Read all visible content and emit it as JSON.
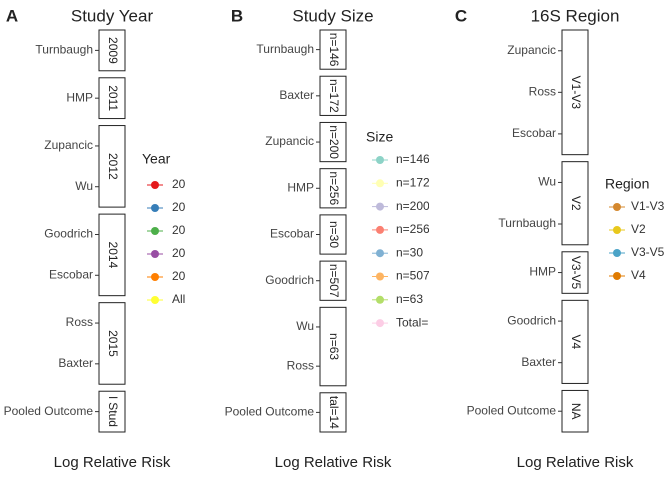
{
  "chart_data": [
    {
      "type": "forest",
      "panel": "A",
      "title": "Study Year",
      "x_label": "Log Relative Risk",
      "facets": [
        {
          "label": "2009",
          "rows": [
            "Turnbaugh"
          ]
        },
        {
          "label": "2011",
          "rows": [
            "HMP"
          ]
        },
        {
          "label": "2012",
          "rows": [
            "Zupancic",
            "Wu"
          ]
        },
        {
          "label": "2014",
          "rows": [
            "Goodrich",
            "Escobar"
          ]
        },
        {
          "label": "2015",
          "rows": [
            "Ross",
            "Baxter"
          ]
        },
        {
          "label": "l Stud",
          "rows": [
            "Pooled Outcome"
          ]
        }
      ],
      "legend": {
        "title": "Year",
        "entries": [
          {
            "label": "20",
            "color": "#e41a1c"
          },
          {
            "label": "20",
            "color": "#377eb8"
          },
          {
            "label": "20",
            "color": "#4daf4a"
          },
          {
            "label": "20",
            "color": "#984ea3"
          },
          {
            "label": "20",
            "color": "#ff7f00"
          },
          {
            "label": "All",
            "color": "#ffff33"
          }
        ]
      }
    },
    {
      "type": "forest",
      "panel": "B",
      "title": "Study Size",
      "x_label": "Log Relative Risk",
      "facets": [
        {
          "label": "n=146",
          "rows": [
            "Turnbaugh"
          ]
        },
        {
          "label": "n=172",
          "rows": [
            "Baxter"
          ]
        },
        {
          "label": "n=200",
          "rows": [
            "Zupancic"
          ]
        },
        {
          "label": "n=256",
          "rows": [
            "HMP"
          ]
        },
        {
          "label": "n=30",
          "rows": [
            "Escobar"
          ]
        },
        {
          "label": "n=507",
          "rows": [
            "Goodrich"
          ]
        },
        {
          "label": "n=63",
          "rows": [
            "Wu",
            "Ross"
          ]
        },
        {
          "label": "tal=14",
          "rows": [
            "Pooled Outcome"
          ]
        }
      ],
      "legend": {
        "title": "Size",
        "entries": [
          {
            "label": "n=146",
            "color": "#8dd3c7"
          },
          {
            "label": "n=172",
            "color": "#ffffb3"
          },
          {
            "label": "n=200",
            "color": "#bebada"
          },
          {
            "label": "n=256",
            "color": "#fb8072"
          },
          {
            "label": "n=30",
            "color": "#80b1d3"
          },
          {
            "label": "n=507",
            "color": "#fdb462"
          },
          {
            "label": "n=63",
            "color": "#b3de69"
          },
          {
            "label": "Total=",
            "color": "#fccde5"
          }
        ]
      }
    },
    {
      "type": "forest",
      "panel": "C",
      "title": "16S Region",
      "x_label": "Log Relative Risk",
      "facets": [
        {
          "label": "V1-V3",
          "rows": [
            "Zupancic",
            "Ross",
            "Escobar"
          ]
        },
        {
          "label": "V2",
          "rows": [
            "Wu",
            "Turnbaugh"
          ]
        },
        {
          "label": "V3-V5",
          "rows": [
            "HMP"
          ]
        },
        {
          "label": "V4",
          "rows": [
            "Goodrich",
            "Baxter"
          ]
        },
        {
          "label": "NA",
          "rows": [
            "Pooled Outcome"
          ]
        }
      ],
      "legend": {
        "title": "Region",
        "entries": [
          {
            "label": "V1-V3",
            "color": "#d4882e"
          },
          {
            "label": "V2",
            "color": "#e8c81c"
          },
          {
            "label": "V3-V5",
            "color": "#4ba3c7"
          },
          {
            "label": "V4",
            "color": "#e07b00"
          }
        ]
      }
    }
  ]
}
